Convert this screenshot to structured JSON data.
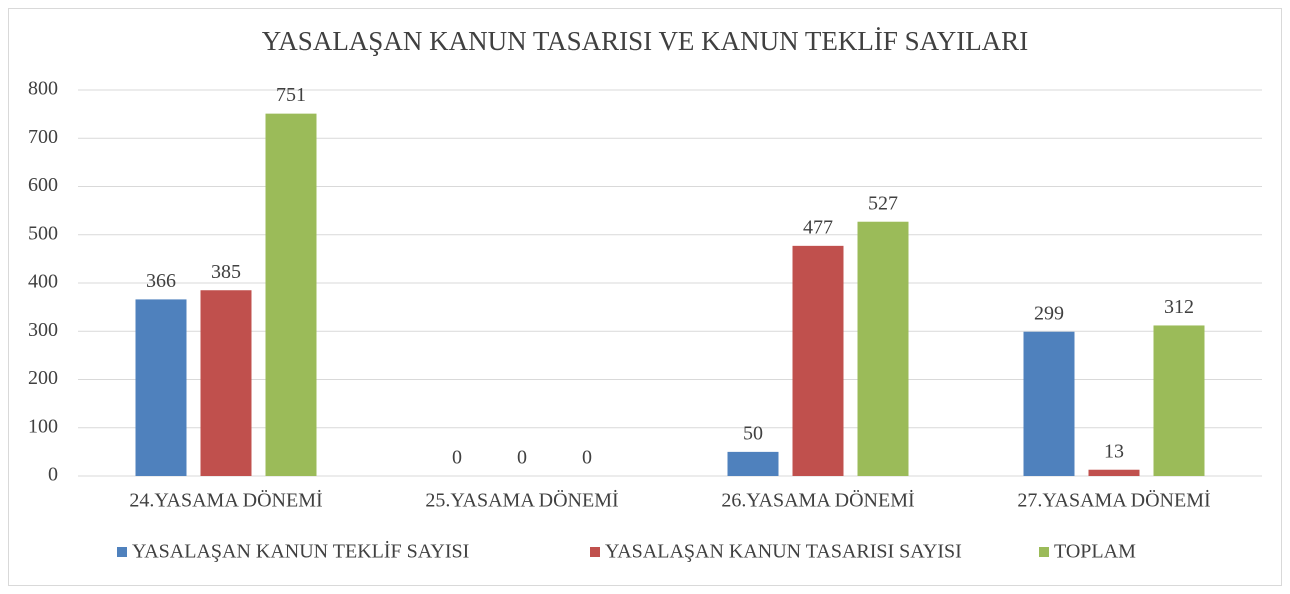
{
  "chart_data": {
    "type": "bar",
    "title": "YASALAŞAN KANUN TASARISI VE KANUN TEKLİF SAYILARI",
    "categories": [
      "24.YASAMA DÖNEMİ",
      "25.YASAMA DÖNEMİ",
      "26.YASAMA DÖNEMİ",
      "27.YASAMA DÖNEMİ"
    ],
    "series": [
      {
        "name": "YASALAŞAN KANUN TEKLİF SAYISI",
        "color": "#4f81bd",
        "values": [
          366,
          0,
          50,
          299
        ]
      },
      {
        "name": "YASALAŞAN KANUN TASARISI SAYISI",
        "color": "#c0504d",
        "values": [
          385,
          0,
          477,
          13
        ]
      },
      {
        "name": "TOPLAM",
        "color": "#9bbb59",
        "values": [
          751,
          0,
          527,
          312
        ]
      }
    ],
    "ylim": [
      0,
      800
    ],
    "yticks": [
      0,
      100,
      200,
      300,
      400,
      500,
      600,
      700,
      800
    ],
    "grid": true,
    "legend": "bottom"
  }
}
